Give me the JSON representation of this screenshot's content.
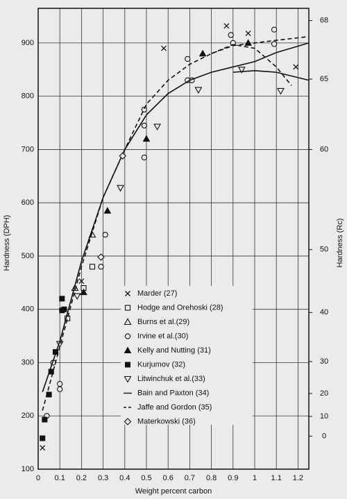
{
  "chart_data": {
    "type": "scatter",
    "xlabel": "Weight percent carbon",
    "ylabel": "Hardness (DPH)",
    "y2label": "Hardness (Rc)",
    "xlim": [
      0,
      1.25
    ],
    "xticks": [
      0,
      0.1,
      0.2,
      0.3,
      0.4,
      0.5,
      0.6,
      0.7,
      0.8,
      0.9,
      1.0,
      1.1,
      1.2
    ],
    "ylim": [
      100,
      965
    ],
    "yticks": [
      100,
      200,
      300,
      400,
      500,
      600,
      700,
      800,
      900
    ],
    "y2ticks": [
      0,
      10,
      20,
      30,
      40,
      50,
      60,
      65,
      68
    ],
    "y2_dph": [
      162,
      199,
      242,
      302,
      394,
      512,
      700,
      832,
      942
    ],
    "grid": true,
    "color": "#111111",
    "series": [
      {
        "name": "Marder (27)",
        "marker": "x",
        "x": [
          0.02,
          0.2,
          0.58,
          0.87,
          0.97,
          1.19
        ],
        "values": [
          140,
          453,
          890,
          932,
          918,
          855
        ]
      },
      {
        "name": "Hodge and Orehoski (28)",
        "marker": "square-open",
        "x": [
          0.135,
          0.21,
          0.25
        ],
        "values": [
          383,
          440,
          480
        ]
      },
      {
        "name": "Burns et al.(29)",
        "marker": "triangle-open",
        "x": [
          0.17,
          0.25
        ],
        "values": [
          440,
          540
        ]
      },
      {
        "name": "Irvine et al.(30)",
        "marker": "circle-open",
        "x": [
          0.04,
          0.07,
          0.1,
          0.1,
          0.29,
          0.31,
          0.49,
          0.49,
          0.49,
          0.69,
          0.69,
          0.71,
          0.89,
          0.9,
          1.09,
          1.09
        ],
        "values": [
          200,
          300,
          250,
          260,
          480,
          540,
          685,
          745,
          775,
          830,
          870,
          830,
          915,
          900,
          925,
          898
        ]
      },
      {
        "name": "Kelly and Nutting (31)",
        "marker": "triangle-filled",
        "x": [
          0.21,
          0.32,
          0.5,
          0.76,
          0.97
        ],
        "values": [
          432,
          585,
          720,
          880,
          900
        ]
      },
      {
        "name": "Kurjumov (32)",
        "marker": "square-filled",
        "x": [
          0.02,
          0.03,
          0.05,
          0.06,
          0.08,
          0.11,
          0.11,
          0.12
        ],
        "values": [
          158,
          193,
          240,
          283,
          320,
          420,
          398,
          400
        ]
      },
      {
        "name": "Litwinchuk et al.(33)",
        "marker": "triangle-down-open",
        "x": [
          0.1,
          0.18,
          0.38,
          0.55,
          0.74,
          0.94,
          1.12
        ],
        "values": [
          335,
          425,
          628,
          743,
          812,
          850,
          810
        ]
      },
      {
        "name": "Bain and Paxton (34)",
        "marker": "line-solid",
        "x": [
          0.02,
          0.1,
          0.2,
          0.3,
          0.4,
          0.5,
          0.6,
          0.7,
          0.8,
          0.9,
          1.0,
          1.1,
          1.25
        ],
        "values": [
          245,
          340,
          490,
          610,
          700,
          765,
          805,
          830,
          845,
          855,
          865,
          882,
          900
        ]
      },
      {
        "name": "Jaffe and Gordon (35)",
        "marker": "line-dashed",
        "x": [
          0.02,
          0.1,
          0.2,
          0.3,
          0.4,
          0.5,
          0.6,
          0.7,
          0.8,
          0.9,
          1.0,
          1.1,
          1.25
        ],
        "values": [
          210,
          330,
          480,
          610,
          700,
          785,
          830,
          860,
          880,
          895,
          900,
          905,
          912
        ]
      },
      {
        "name": "Materkowski (36)",
        "marker": "diamond-open",
        "x": [
          0.29,
          0.39
        ],
        "values": [
          498,
          688
        ]
      },
      {
        "marker": "line-solid",
        "x": [
          0.9,
          1.0,
          1.1,
          1.25
        ],
        "values": [
          845,
          848,
          845,
          830
        ]
      },
      {
        "marker": "line-dashed",
        "x": [
          0.8,
          0.9,
          1.0,
          1.1,
          1.17
        ],
        "values": [
          880,
          897,
          890,
          855,
          820
        ]
      }
    ]
  }
}
